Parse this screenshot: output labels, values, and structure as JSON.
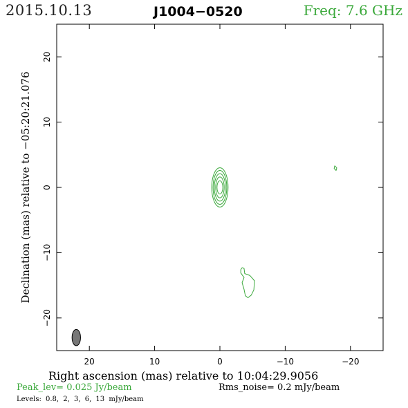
{
  "header": {
    "date": "2015.10.13",
    "source": "J1004−0520",
    "frequency": "Freq: 7.6 GHz"
  },
  "footer": {
    "peak": "Peak_lev=  0.025 Jy/beam",
    "rms": "Rms_noise=   0.2 mJy/beam",
    "levels": "Levels: 0.8,   2,   3,   6,   13 mJy/beam"
  },
  "chart_data": {
    "type": "contour",
    "title": "J1004−0520",
    "xlabel": "Right ascension (mas) relative to 10:04:29.9056",
    "ylabel": "Declination (mas) relative to −05:20:21.076",
    "xlim": [
      25,
      -25
    ],
    "ylim": [
      -25,
      25
    ],
    "x_ticks": [
      20,
      10,
      0,
      -10,
      -20
    ],
    "y_ticks": [
      20,
      10,
      0,
      -10,
      -20
    ],
    "x_tick_labels": [
      "20",
      "10",
      "0",
      "−10",
      "−20"
    ],
    "y_tick_labels": [
      "20",
      "10",
      "0",
      "−10",
      "−20"
    ],
    "contour_color": "#3aa83a",
    "levels_mJy": [
      0.8,
      2,
      3,
      6,
      13
    ],
    "core": {
      "x": 0,
      "y": 0,
      "rx": [
        1.25,
        1.05,
        0.85,
        0.65,
        0.45
      ],
      "ry": [
        3.0,
        2.6,
        2.1,
        1.6,
        1.0
      ]
    },
    "blobs": [
      {
        "name": "jet",
        "points": [
          [
            -3.4,
            -12.3
          ],
          [
            -3.7,
            -12.4
          ],
          [
            -3.8,
            -13.2
          ],
          [
            -4.6,
            -13.5
          ],
          [
            -5.3,
            -14.3
          ],
          [
            -5.2,
            -15.7
          ],
          [
            -4.8,
            -16.5
          ],
          [
            -4.3,
            -16.9
          ],
          [
            -3.9,
            -16.6
          ],
          [
            -3.7,
            -15.6
          ],
          [
            -3.4,
            -14.6
          ],
          [
            -3.7,
            -13.8
          ],
          [
            -3.2,
            -13.1
          ],
          [
            -3.2,
            -12.6
          ]
        ]
      },
      {
        "name": "knot",
        "points": [
          [
            -17.6,
            3.3
          ],
          [
            -17.9,
            3.0
          ],
          [
            -17.8,
            2.6
          ],
          [
            -17.5,
            2.9
          ]
        ]
      }
    ],
    "beam": {
      "x": 22,
      "y": -23,
      "major": 2.5,
      "minor": 1.3,
      "pa": 0,
      "fill": "#777777"
    }
  }
}
